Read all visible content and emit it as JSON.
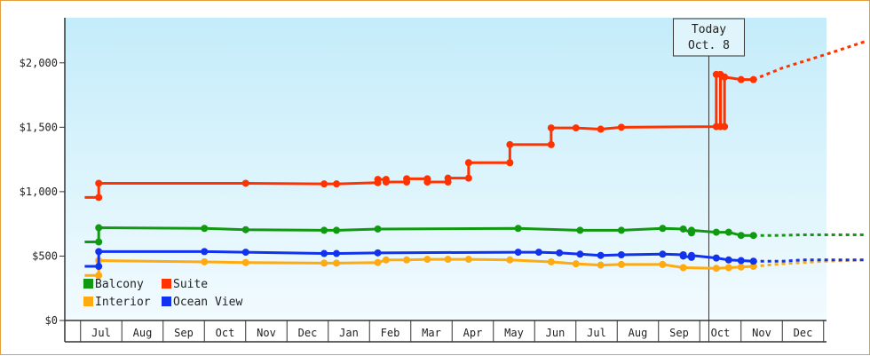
{
  "chart_data": {
    "type": "line",
    "title": "",
    "xlabel": "",
    "ylabel": "",
    "ylim": [
      0,
      2350
    ],
    "y_ticks": [
      {
        "value": 0,
        "label": "$0"
      },
      {
        "value": 500,
        "label": "$500"
      },
      {
        "value": 1000,
        "label": "$1,000"
      },
      {
        "value": 1500,
        "label": "$1,500"
      },
      {
        "value": 2000,
        "label": "$2,000"
      }
    ],
    "x_range": [
      -0.4,
      18.5
    ],
    "months": [
      {
        "pos": 0,
        "label": "Jul"
      },
      {
        "pos": 1,
        "label": "Aug"
      },
      {
        "pos": 2,
        "label": "Sep"
      },
      {
        "pos": 3,
        "label": "Oct"
      },
      {
        "pos": 4,
        "label": "Nov"
      },
      {
        "pos": 5,
        "label": "Dec"
      },
      {
        "pos": 6,
        "label": "Jan"
      },
      {
        "pos": 7,
        "label": "Feb"
      },
      {
        "pos": 8,
        "label": "Mar"
      },
      {
        "pos": 9,
        "label": "Apr"
      },
      {
        "pos": 10,
        "label": "May"
      },
      {
        "pos": 11,
        "label": "Jun"
      },
      {
        "pos": 12,
        "label": "Jul"
      },
      {
        "pos": 13,
        "label": "Aug"
      },
      {
        "pos": 14,
        "label": "Sep"
      },
      {
        "pos": 15,
        "label": "Oct"
      },
      {
        "pos": 16,
        "label": "Nov"
      },
      {
        "pos": 17,
        "label": "Dec"
      }
    ],
    "today": {
      "x": 14.72,
      "line1": "Today",
      "line2": "Oct. 8"
    },
    "grid": false,
    "legend_position": "bottom-left",
    "series": [
      {
        "name": "Balcony",
        "color": "#119911",
        "points": [
          [
            -0.4,
            610
          ],
          [
            -0.06,
            610
          ],
          [
            -0.06,
            720
          ],
          [
            2.5,
            715
          ],
          [
            3.5,
            705
          ],
          [
            5.4,
            700
          ],
          [
            5.7,
            700
          ],
          [
            6.7,
            710
          ],
          [
            10.1,
            715
          ],
          [
            11.6,
            700
          ],
          [
            12.6,
            700
          ],
          [
            13.6,
            715
          ],
          [
            14.1,
            710
          ],
          [
            14.3,
            680
          ],
          [
            14.3,
            700
          ],
          [
            14.9,
            685
          ],
          [
            15.2,
            685
          ],
          [
            15.5,
            660
          ],
          [
            15.8,
            660
          ]
        ],
        "projection": [
          [
            15.8,
            660
          ],
          [
            16.3,
            660
          ],
          [
            17.0,
            665
          ],
          [
            18.5,
            665
          ]
        ]
      },
      {
        "name": "Suite",
        "color": "#ff3300",
        "points": [
          [
            -0.4,
            955
          ],
          [
            -0.06,
            955
          ],
          [
            -0.06,
            1065
          ],
          [
            3.5,
            1065
          ],
          [
            5.4,
            1060
          ],
          [
            5.7,
            1060
          ],
          [
            6.7,
            1070
          ],
          [
            6.7,
            1095
          ],
          [
            6.9,
            1095
          ],
          [
            6.9,
            1075
          ],
          [
            7.4,
            1075
          ],
          [
            7.4,
            1100
          ],
          [
            7.9,
            1100
          ],
          [
            7.9,
            1075
          ],
          [
            8.4,
            1075
          ],
          [
            8.4,
            1105
          ],
          [
            8.9,
            1105
          ],
          [
            8.9,
            1225
          ],
          [
            9.9,
            1225
          ],
          [
            9.9,
            1365
          ],
          [
            10.9,
            1365
          ],
          [
            10.9,
            1495
          ],
          [
            11.5,
            1495
          ],
          [
            12.1,
            1485
          ],
          [
            12.6,
            1500
          ],
          [
            14.9,
            1505
          ],
          [
            14.9,
            1910
          ],
          [
            15.0,
            1910
          ],
          [
            15.0,
            1505
          ],
          [
            15.1,
            1505
          ],
          [
            15.1,
            1890
          ],
          [
            15.5,
            1870
          ],
          [
            15.8,
            1870
          ]
        ],
        "projection": [
          [
            15.8,
            1870
          ],
          [
            16.5,
            1960
          ],
          [
            17.5,
            2060
          ],
          [
            18.5,
            2165
          ]
        ]
      },
      {
        "name": "Interior",
        "color": "#ffaa11",
        "points": [
          [
            -0.4,
            350
          ],
          [
            -0.06,
            350
          ],
          [
            -0.06,
            465
          ],
          [
            2.5,
            455
          ],
          [
            3.5,
            450
          ],
          [
            5.4,
            445
          ],
          [
            5.7,
            445
          ],
          [
            6.7,
            450
          ],
          [
            6.9,
            470
          ],
          [
            7.4,
            470
          ],
          [
            7.9,
            475
          ],
          [
            8.4,
            475
          ],
          [
            8.9,
            475
          ],
          [
            9.9,
            470
          ],
          [
            10.9,
            455
          ],
          [
            11.5,
            440
          ],
          [
            12.1,
            430
          ],
          [
            12.6,
            435
          ],
          [
            13.6,
            435
          ],
          [
            14.1,
            410
          ],
          [
            14.9,
            405
          ],
          [
            15.2,
            410
          ],
          [
            15.5,
            415
          ],
          [
            15.8,
            420
          ]
        ],
        "projection": [
          [
            15.8,
            420
          ],
          [
            16.5,
            440
          ],
          [
            17.5,
            460
          ],
          [
            18.5,
            470
          ]
        ]
      },
      {
        "name": "Ocean View",
        "color": "#1133ee",
        "points": [
          [
            -0.4,
            420
          ],
          [
            -0.06,
            420
          ],
          [
            -0.06,
            535
          ],
          [
            2.5,
            535
          ],
          [
            3.5,
            530
          ],
          [
            5.4,
            520
          ],
          [
            5.7,
            520
          ],
          [
            6.7,
            525
          ],
          [
            10.1,
            530
          ],
          [
            10.6,
            530
          ],
          [
            11.1,
            525
          ],
          [
            11.6,
            515
          ],
          [
            12.1,
            505
          ],
          [
            12.6,
            510
          ],
          [
            13.6,
            515
          ],
          [
            14.1,
            510
          ],
          [
            14.1,
            500
          ],
          [
            14.3,
            490
          ],
          [
            14.3,
            505
          ],
          [
            14.9,
            485
          ],
          [
            15.2,
            470
          ],
          [
            15.5,
            465
          ],
          [
            15.8,
            460
          ]
        ],
        "projection": [
          [
            15.8,
            460
          ],
          [
            16.5,
            460
          ],
          [
            17.0,
            470
          ],
          [
            18.5,
            470
          ]
        ]
      }
    ]
  }
}
